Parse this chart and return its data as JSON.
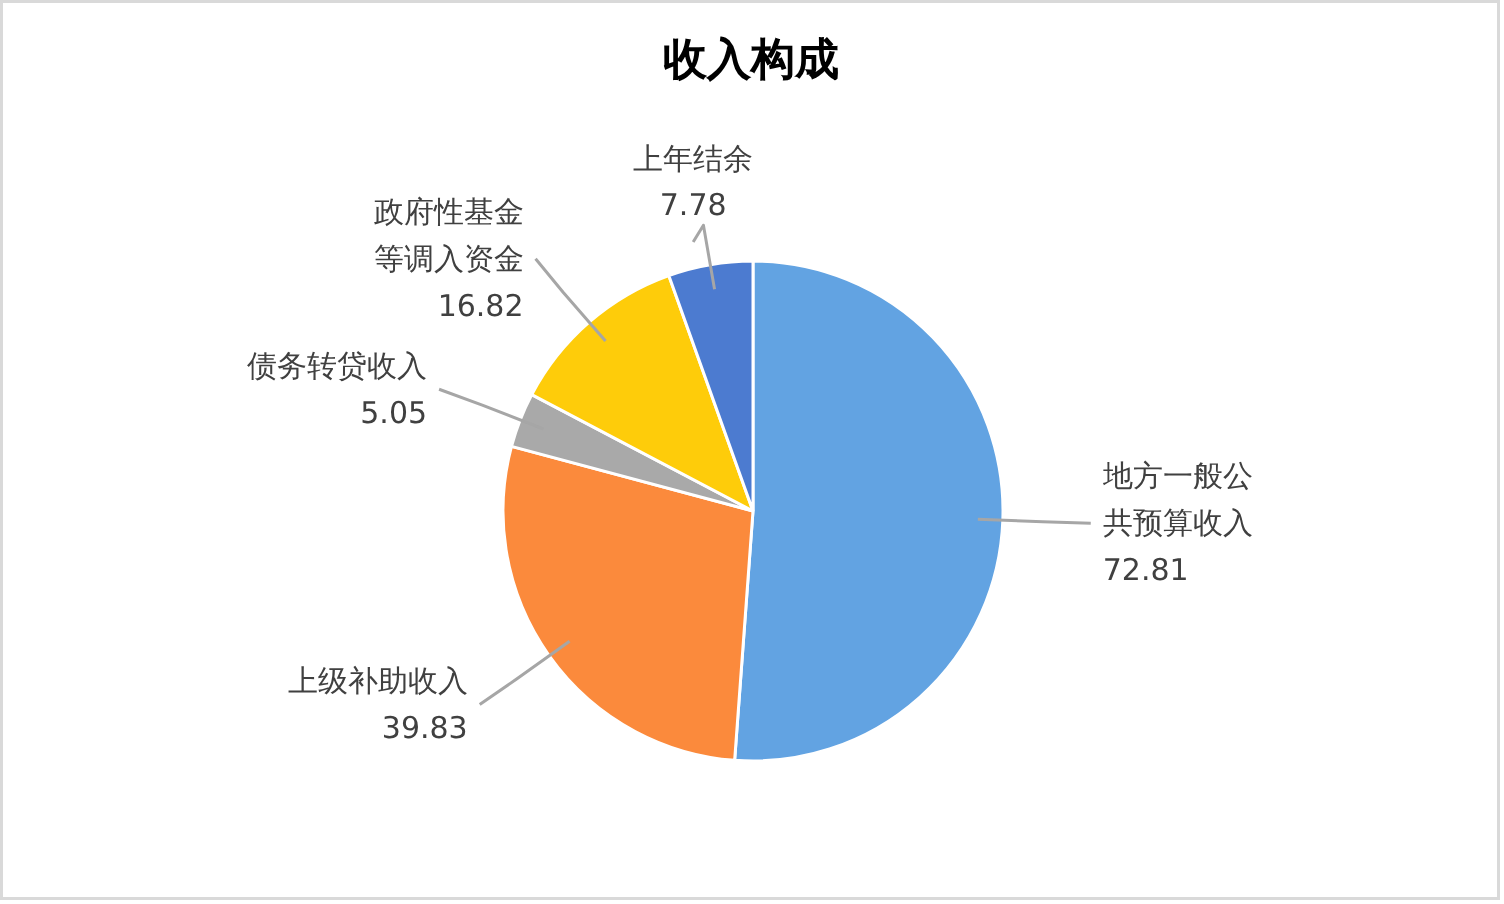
{
  "chart_data": {
    "type": "pie",
    "title": "收入构成",
    "categories": [
      "地方一般公共预算收入",
      "上级补助收入",
      "债务转贷收入",
      "政府性基金等调入资金",
      "上年结余"
    ],
    "values": [
      72.81,
      39.83,
      5.05,
      16.82,
      7.78
    ],
    "colors": [
      "#62A3E2",
      "#FB8A3C",
      "#A9A9A9",
      "#FECC0A",
      "#4C7BD0"
    ],
    "data_labels": true
  }
}
